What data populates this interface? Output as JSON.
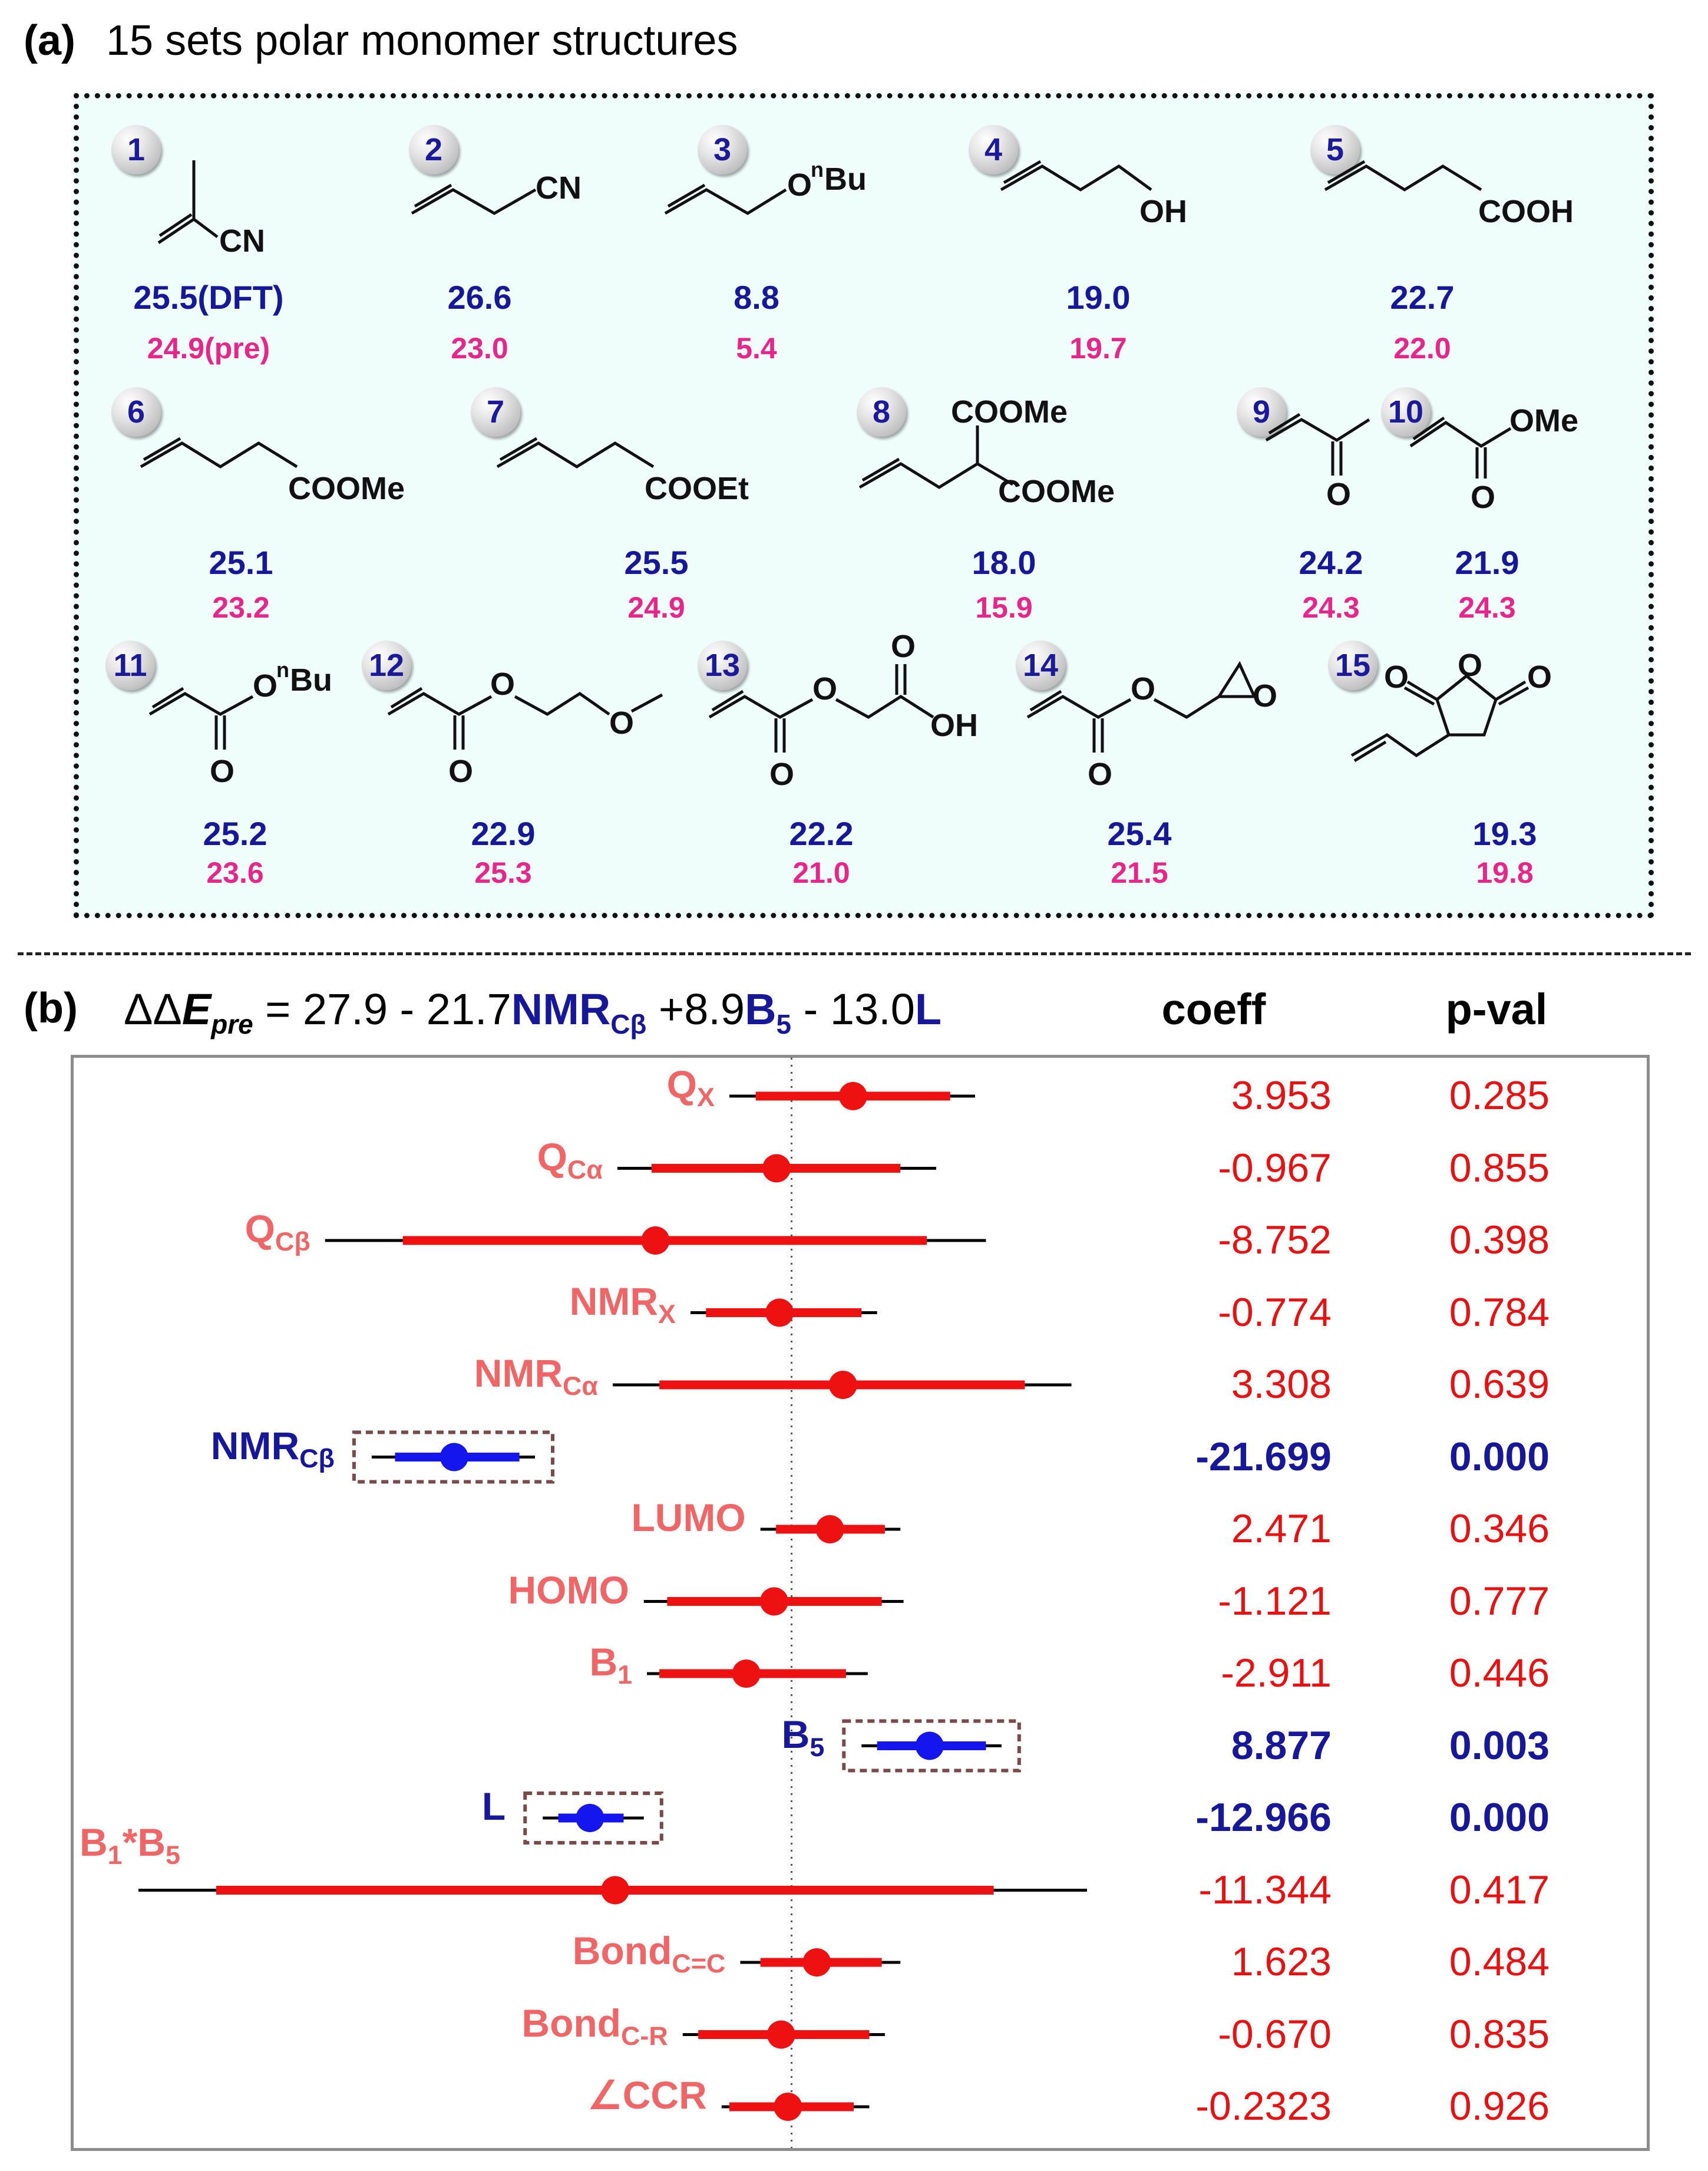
{
  "panel_a": {
    "label": "(a)",
    "title": "15 sets polar monomer structures",
    "monomers": [
      {
        "id": "1",
        "groups": [
          "CN"
        ],
        "dft": "25.5(DFT)",
        "pre": "24.9(pre)"
      },
      {
        "id": "2",
        "groups": [
          "CN"
        ],
        "dft": "26.6",
        "pre": "23.0"
      },
      {
        "id": "3",
        "groups": [
          "O",
          "n",
          "Bu"
        ],
        "dft": "8.8",
        "pre": "5.4"
      },
      {
        "id": "4",
        "groups": [
          "OH"
        ],
        "dft": "19.0",
        "pre": "19.7"
      },
      {
        "id": "5",
        "groups": [
          "COOH"
        ],
        "dft": "22.7",
        "pre": "22.0"
      },
      {
        "id": "6",
        "groups": [
          "COOMe"
        ],
        "dft": "25.1",
        "pre": "23.2"
      },
      {
        "id": "7",
        "groups": [
          "COOEt"
        ],
        "dft": "25.5",
        "pre": "24.9"
      },
      {
        "id": "8",
        "groups": [
          "COOMe",
          "COOMe"
        ],
        "dft": "18.0",
        "pre": "15.9"
      },
      {
        "id": "9",
        "groups": [
          "O"
        ],
        "dft": "24.2",
        "pre": "24.3"
      },
      {
        "id": "10",
        "groups": [
          "OMe",
          "O"
        ],
        "dft": "21.9",
        "pre": "24.3"
      },
      {
        "id": "11",
        "groups": [
          "O",
          "n",
          "Bu",
          "O"
        ],
        "dft": "25.2",
        "pre": "23.6"
      },
      {
        "id": "12",
        "groups": [
          "O",
          "O",
          "O"
        ],
        "dft": "22.9",
        "pre": "25.3"
      },
      {
        "id": "13",
        "groups": [
          "O",
          "O",
          "O",
          "OH"
        ],
        "dft": "22.2",
        "pre": "21.0"
      },
      {
        "id": "14",
        "groups": [
          "O",
          "O",
          "O"
        ],
        "dft": "25.4",
        "pre": "21.5"
      },
      {
        "id": "15",
        "groups": [
          "O",
          "O",
          "O"
        ],
        "dft": "19.3",
        "pre": "19.8"
      }
    ]
  },
  "panel_b": {
    "label": "(b)",
    "equation": {
      "dd": "ΔΔ",
      "E": "E",
      "pre": "pre",
      "eq1": " = 27.9 - 21.7",
      "nmr": "NMR",
      "nmr_sub": "Cβ",
      "eq2": " +8.9",
      "b": "B",
      "b_sub": "5",
      "eq3": " - 13.0",
      "l": "L"
    },
    "col_coeff": "coeff",
    "col_pval": "p-val"
  },
  "chart_data": {
    "type": "forest",
    "title": "",
    "xlabel": "",
    "reference_line": 0,
    "series": [
      {
        "label": "Q",
        "sub": "X",
        "coef": "3.953",
        "pval": "0.285",
        "est": 3.953,
        "ci95": [
          -4.0,
          11.8
        ],
        "ci90": [
          -2.3,
          10.2
        ],
        "significant": false
      },
      {
        "label": "Q",
        "sub": "Cα",
        "coef": "-0.967",
        "pval": "0.855",
        "est": -0.967,
        "ci95": [
          -11.2,
          9.3
        ],
        "ci90": [
          -9.0,
          7.0
        ],
        "significant": false
      },
      {
        "label": "Q",
        "sub": "Cβ",
        "coef": "-8.752",
        "pval": "0.398",
        "est": -8.752,
        "ci95": [
          -30.0,
          12.5
        ],
        "ci90": [
          -25.0,
          8.7
        ],
        "significant": false
      },
      {
        "label": "NMR",
        "sub": "X",
        "coef": "-0.774",
        "pval": "0.784",
        "est": -0.774,
        "ci95": [
          -6.5,
          5.5
        ],
        "ci90": [
          -5.5,
          4.5
        ],
        "significant": false
      },
      {
        "label": "NMR",
        "sub": "Cα",
        "coef": "3.308",
        "pval": "0.639",
        "est": 3.308,
        "ci95": [
          -11.5,
          18.0
        ],
        "ci90": [
          -8.5,
          15.0
        ],
        "significant": false
      },
      {
        "label": "NMR",
        "sub": "Cβ",
        "coef": "-21.699",
        "pval": "0.000",
        "est": -21.699,
        "ci95": [
          -27.0,
          -16.5
        ],
        "ci90": [
          -25.5,
          -17.5
        ],
        "significant": true
      },
      {
        "label": "LUMO",
        "sub": "",
        "coef": "2.471",
        "pval": "0.346",
        "est": 2.471,
        "ci95": [
          -2.0,
          7.0
        ],
        "ci90": [
          -1.0,
          6.0
        ],
        "significant": false
      },
      {
        "label": "HOMO",
        "sub": "",
        "coef": "-1.121",
        "pval": "0.777",
        "est": -1.121,
        "ci95": [
          -9.5,
          7.2
        ],
        "ci90": [
          -8.0,
          5.8
        ],
        "significant": false
      },
      {
        "label": "B",
        "sub": "1",
        "coef": "-2.911",
        "pval": "0.446",
        "est": -2.911,
        "ci95": [
          -9.3,
          4.9
        ],
        "ci90": [
          -8.5,
          3.5
        ],
        "significant": false
      },
      {
        "label": "B",
        "sub": "5",
        "coef": "8.877",
        "pval": "0.003",
        "est": 8.877,
        "ci95": [
          4.5,
          13.5
        ],
        "ci90": [
          5.5,
          12.5
        ],
        "significant": true
      },
      {
        "label": "L",
        "sub": "",
        "coef": "-12.966",
        "pval": "0.000",
        "est": -12.966,
        "ci95": [
          -16.0,
          -9.5
        ],
        "ci90": [
          -15.0,
          -10.8
        ],
        "significant": true
      },
      {
        "label": "B",
        "sub": "1",
        "label2": "*B",
        "sub2": "5",
        "coef": "-11.344",
        "pval": "0.417",
        "est": -11.344,
        "ci95": [
          -42.0,
          19.0
        ],
        "ci90": [
          -37.0,
          13.0
        ],
        "significant": false
      },
      {
        "label": "Bond",
        "sub": "C=C",
        "coef": "1.623",
        "pval": "0.484",
        "est": 1.623,
        "ci95": [
          -3.3,
          7.0
        ],
        "ci90": [
          -2.0,
          5.8
        ],
        "significant": false
      },
      {
        "label": "Bond",
        "sub": "C-R",
        "coef": "-0.670",
        "pval": "0.835",
        "est": -0.67,
        "ci95": [
          -7.0,
          6.0
        ],
        "ci90": [
          -6.0,
          5.0
        ],
        "significant": false
      },
      {
        "label": "∠CCR",
        "sub": "",
        "coef": "-0.2323",
        "pval": "0.926",
        "est": -0.2323,
        "ci95": [
          -4.5,
          5.0
        ],
        "ci90": [
          -4.0,
          4.0
        ],
        "significant": false
      }
    ],
    "colors": {
      "estimate": "#ee1111",
      "significant": "#1515ee",
      "whisker": "#000000",
      "highlight_box": "#7a4a4a"
    }
  }
}
